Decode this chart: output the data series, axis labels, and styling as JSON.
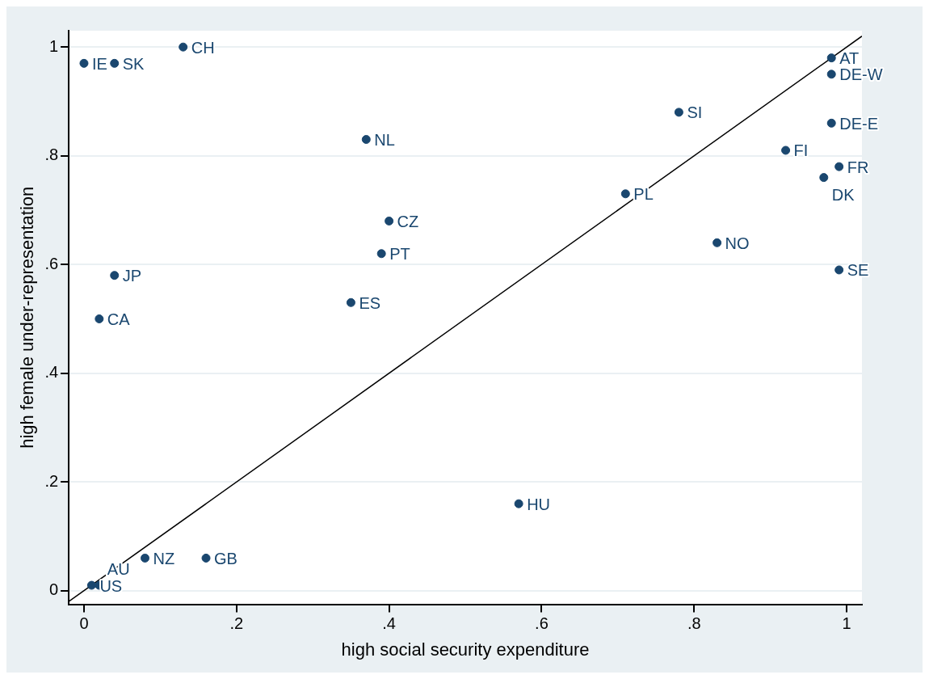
{
  "chart_data": {
    "type": "scatter",
    "xlabel": "high social security expenditure",
    "ylabel": "high female under-representation",
    "xlim": [
      -0.02,
      1.02
    ],
    "ylim": [
      -0.025,
      1.03
    ],
    "xticks": [
      {
        "value": 0,
        "label": "0"
      },
      {
        "value": 0.2,
        "label": ".2"
      },
      {
        "value": 0.4,
        "label": ".4"
      },
      {
        "value": 0.6,
        "label": ".6"
      },
      {
        "value": 0.8,
        "label": ".8"
      },
      {
        "value": 1,
        "label": "1"
      }
    ],
    "yticks": [
      {
        "value": 0,
        "label": "0"
      },
      {
        "value": 0.2,
        "label": ".2"
      },
      {
        "value": 0.4,
        "label": ".4"
      },
      {
        "value": 0.6,
        "label": ".6"
      },
      {
        "value": 0.8,
        "label": ".8"
      },
      {
        "value": 1,
        "label": "1"
      }
    ],
    "grid": "y",
    "legend": false,
    "marker": "circle",
    "series": [
      {
        "color": "#1a476f",
        "x": [
          0,
          0.04,
          0.13,
          0.37,
          0.78,
          0.98,
          0.98,
          0.98,
          0.92,
          0.99,
          0.97,
          0.71,
          0.4,
          0.39,
          0.83,
          0.99,
          0.04,
          0.02,
          0.35,
          0.57,
          0.08,
          0.16,
          0.01,
          0.02
        ],
        "values": [
          0.97,
          0.97,
          1,
          0.83,
          0.88,
          0.98,
          0.95,
          0.86,
          0.81,
          0.78,
          0.76,
          0.73,
          0.68,
          0.62,
          0.64,
          0.59,
          0.58,
          0.5,
          0.53,
          0.16,
          0.06,
          0.06,
          0.01,
          0.01
        ]
      },
      {
        "type": "line",
        "marker": "none",
        "color": "#000000",
        "x": [
          -0.02,
          1.02
        ],
        "values": [
          -0.02,
          1.02
        ]
      }
    ],
    "annotations": [
      {
        "text": "IE",
        "x": 0,
        "y": 0.97
      },
      {
        "text": "SK",
        "x": 0.04,
        "y": 0.97
      },
      {
        "text": "CH",
        "x": 0.13,
        "y": 1
      },
      {
        "text": "NL",
        "x": 0.37,
        "y": 0.83
      },
      {
        "text": "SI",
        "x": 0.78,
        "y": 0.88
      },
      {
        "text": "AT",
        "x": 0.98,
        "y": 0.98
      },
      {
        "text": "DE-W",
        "x": 0.98,
        "y": 0.95
      },
      {
        "text": "DE-E",
        "x": 0.98,
        "y": 0.86
      },
      {
        "text": "FI",
        "x": 0.92,
        "y": 0.81
      },
      {
        "text": "FR",
        "x": 0.99,
        "y": 0.78
      },
      {
        "text": "DK",
        "x": 0.97,
        "y": 0.76
      },
      {
        "text": "PL",
        "x": 0.71,
        "y": 0.73
      },
      {
        "text": "CZ",
        "x": 0.4,
        "y": 0.68
      },
      {
        "text": "PT",
        "x": 0.39,
        "y": 0.62
      },
      {
        "text": "NO",
        "x": 0.83,
        "y": 0.64
      },
      {
        "text": "SE",
        "x": 0.99,
        "y": 0.59
      },
      {
        "text": "JP",
        "x": 0.04,
        "y": 0.58
      },
      {
        "text": "CA",
        "x": 0.02,
        "y": 0.5
      },
      {
        "text": "ES",
        "x": 0.35,
        "y": 0.53
      },
      {
        "text": "HU",
        "x": 0.57,
        "y": 0.16
      },
      {
        "text": "NZ",
        "x": 0.08,
        "y": 0.06
      },
      {
        "text": "GB",
        "x": 0.16,
        "y": 0.06
      },
      {
        "text": "US",
        "x": 0.01,
        "y": 0.01
      },
      {
        "text": "AU",
        "x": 0.02,
        "y": 0.01
      }
    ]
  }
}
